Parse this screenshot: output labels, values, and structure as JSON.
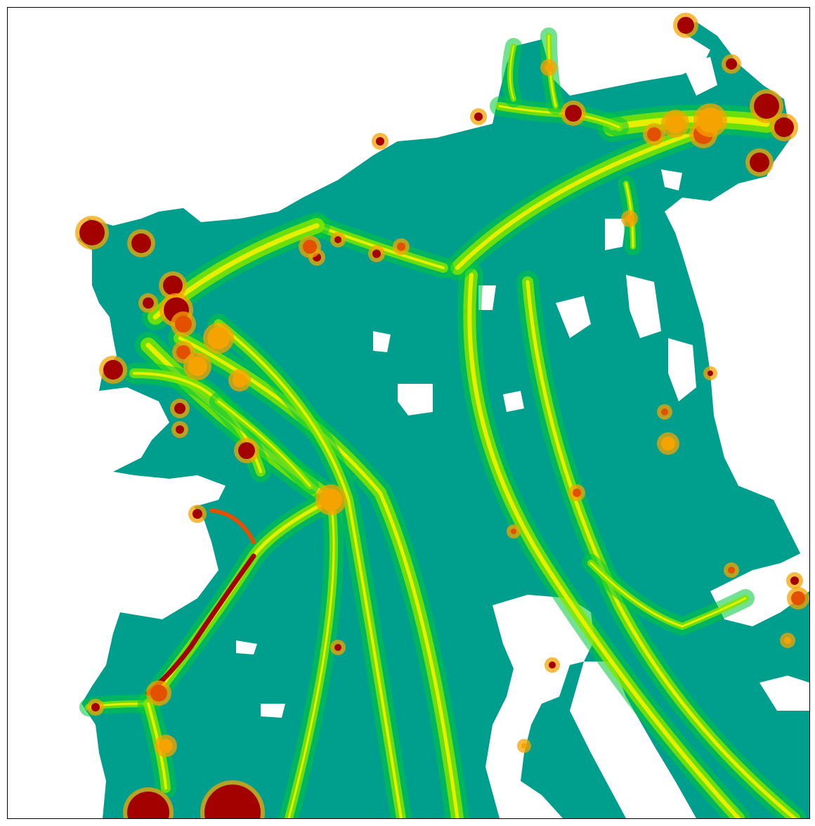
{
  "map": {
    "kind": "vessel traffic density heatmap",
    "title": "",
    "legend": null,
    "axes_ticks_visible": false,
    "colors": {
      "background": "#ffffff",
      "frame": "#000000",
      "low": "#009e8c",
      "low_mid": "#00c83c",
      "mid": "#7ee600",
      "mid_high": "#e6ef00",
      "high": "#f5a300",
      "higher": "#e25000",
      "highest": "#a30000"
    },
    "density_levels": [
      "low",
      "low_mid",
      "mid",
      "mid_high",
      "high",
      "higher",
      "highest"
    ]
  }
}
